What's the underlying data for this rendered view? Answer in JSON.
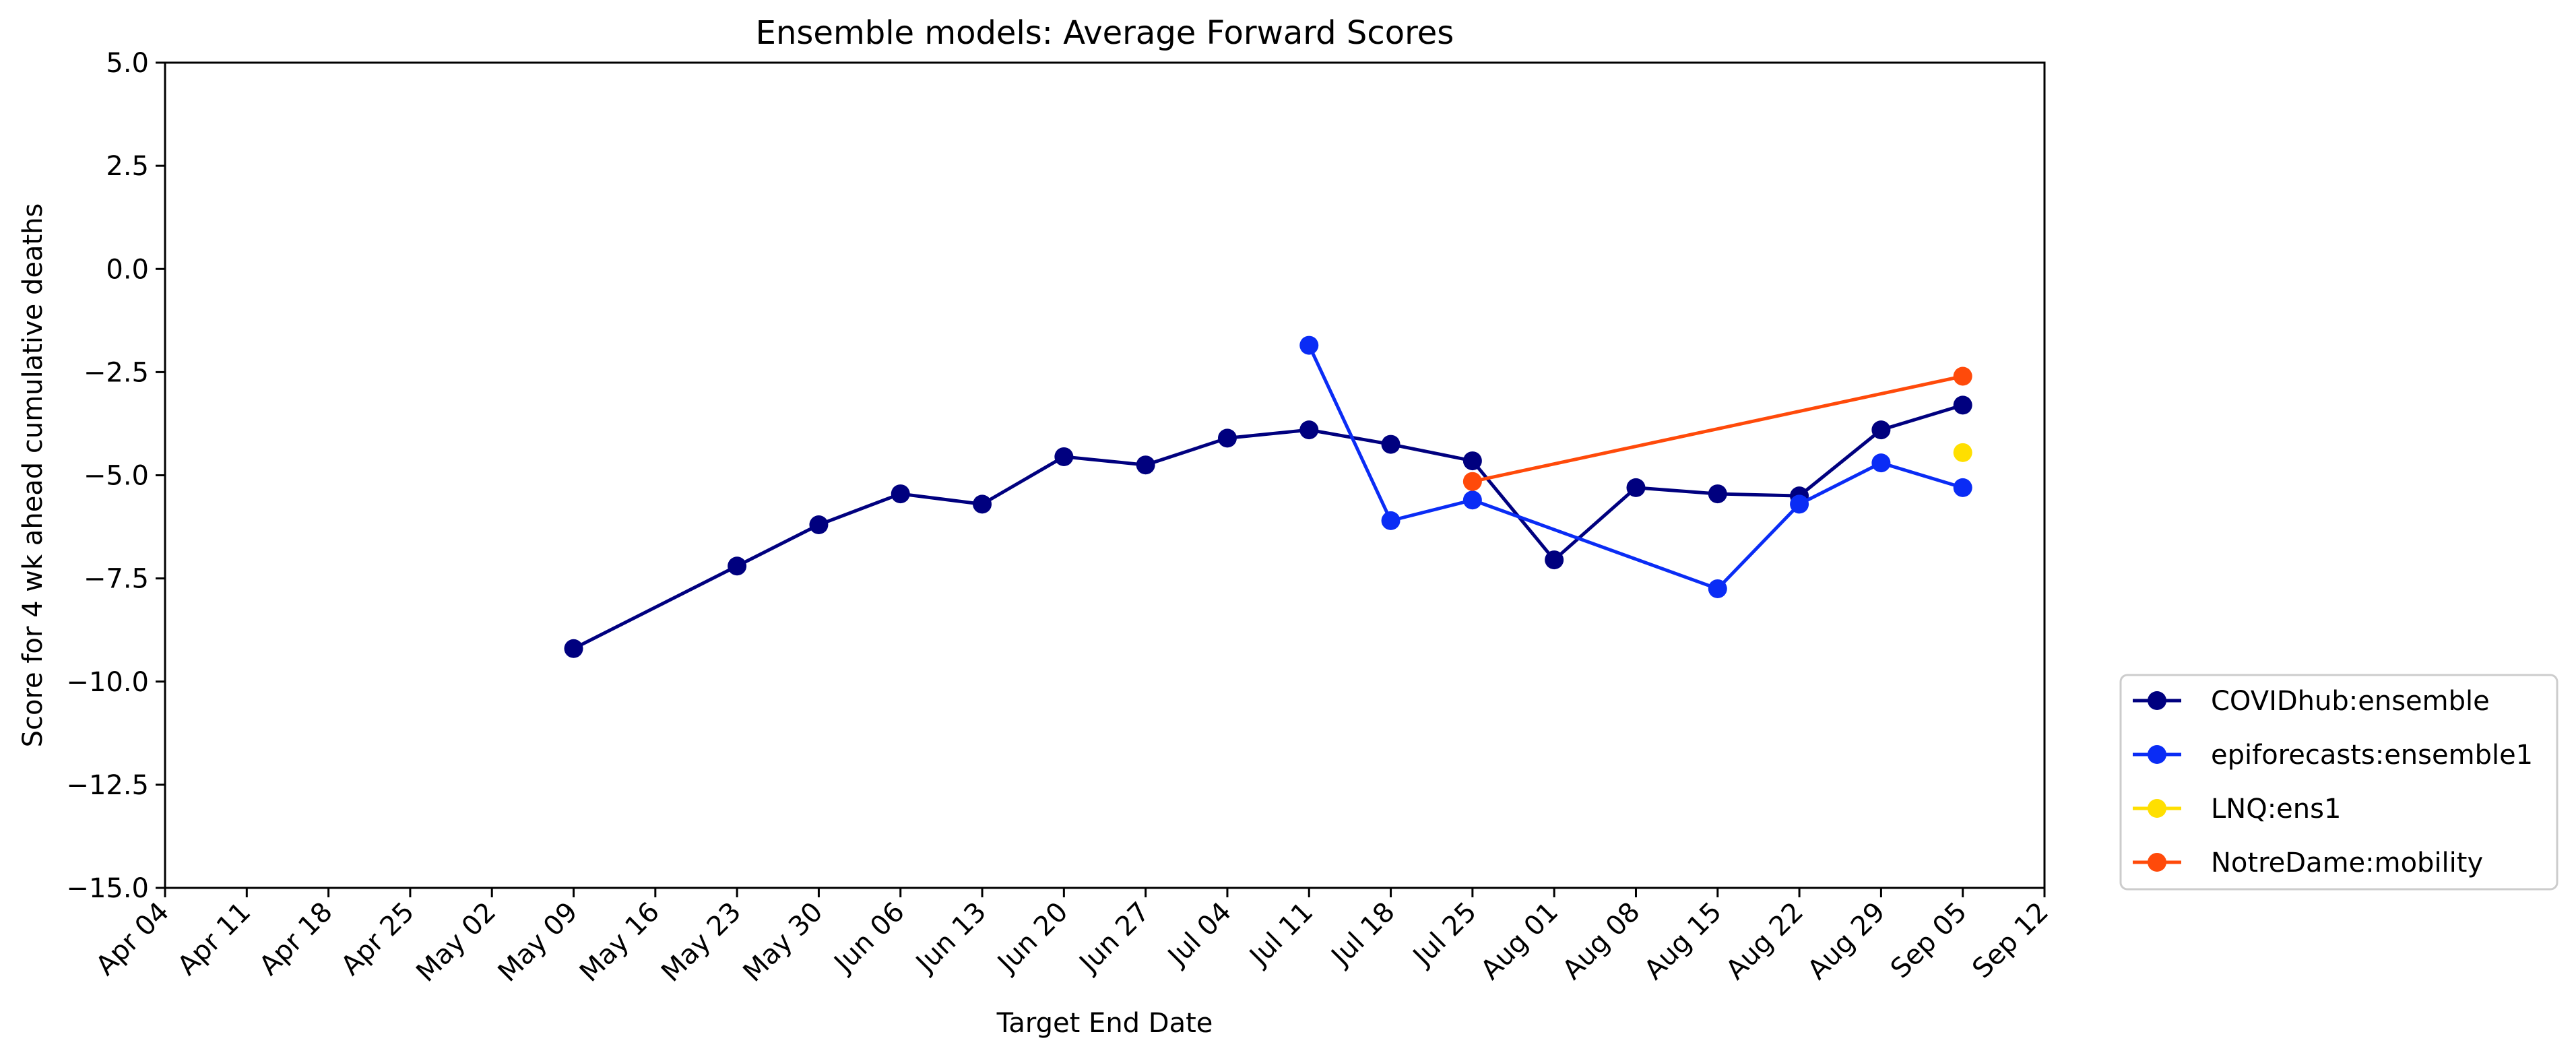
{
  "chart_data": {
    "type": "line",
    "title": "Ensemble models: Average Forward Scores",
    "xlabel": "Target End Date",
    "ylabel": "Score for 4 wk ahead cumulative deaths",
    "ylim": [
      -15.0,
      5.0
    ],
    "xlim": [
      "Apr 04",
      "Sep 12"
    ],
    "grid": false,
    "legend_position": "outside right, bottom",
    "x_ticks": [
      "Apr 04",
      "Apr 11",
      "Apr 18",
      "Apr 25",
      "May 02",
      "May 09",
      "May 16",
      "May 23",
      "May 30",
      "Jun 06",
      "Jun 13",
      "Jun 20",
      "Jun 27",
      "Jul 04",
      "Jul 11",
      "Jul 18",
      "Jul 25",
      "Aug 01",
      "Aug 08",
      "Aug 15",
      "Aug 22",
      "Aug 29",
      "Sep 05",
      "Sep 12"
    ],
    "y_ticks": [
      "5.0",
      "2.5",
      "0.0",
      "−2.5",
      "−5.0",
      "−7.5",
      "−10.0",
      "−12.5",
      "−15.0"
    ],
    "series": [
      {
        "name": "COVIDhub:ensemble",
        "color": "#00007f",
        "points": [
          {
            "x": "May 09",
            "y": -9.2
          },
          {
            "x": "May 23",
            "y": -7.2
          },
          {
            "x": "May 30",
            "y": -6.2
          },
          {
            "x": "Jun 06",
            "y": -5.45
          },
          {
            "x": "Jun 13",
            "y": -5.7
          },
          {
            "x": "Jun 20",
            "y": -4.55
          },
          {
            "x": "Jun 27",
            "y": -4.75
          },
          {
            "x": "Jul 04",
            "y": -4.1
          },
          {
            "x": "Jul 11",
            "y": -3.9
          },
          {
            "x": "Jul 18",
            "y": -4.25
          },
          {
            "x": "Jul 25",
            "y": -4.65
          },
          {
            "x": "Aug 01",
            "y": -7.05
          },
          {
            "x": "Aug 08",
            "y": -5.3
          },
          {
            "x": "Aug 15",
            "y": -5.45
          },
          {
            "x": "Aug 22",
            "y": -5.5
          },
          {
            "x": "Aug 29",
            "y": -3.9
          },
          {
            "x": "Sep 05",
            "y": -3.3
          }
        ]
      },
      {
        "name": "epiforecasts:ensemble1",
        "color": "#0a2cf5",
        "points": [
          {
            "x": "Jul 11",
            "y": -1.85
          },
          {
            "x": "Jul 18",
            "y": -6.1
          },
          {
            "x": "Jul 25",
            "y": -5.6
          },
          {
            "x": "Aug 15",
            "y": -7.75
          },
          {
            "x": "Aug 22",
            "y": -5.7
          },
          {
            "x": "Aug 29",
            "y": -4.7
          },
          {
            "x": "Sep 05",
            "y": -5.3
          }
        ]
      },
      {
        "name": "LNQ:ens1",
        "color": "#ffdf00",
        "points": [
          {
            "x": "Sep 05",
            "y": -4.45
          }
        ]
      },
      {
        "name": "NotreDame:mobility",
        "color": "#ff4a0a",
        "points": [
          {
            "x": "Jul 25",
            "y": -5.15
          },
          {
            "x": "Sep 05",
            "y": -2.6
          }
        ]
      }
    ]
  }
}
